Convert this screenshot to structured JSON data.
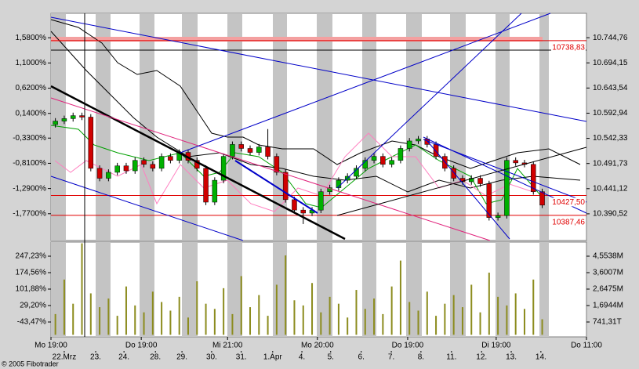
{
  "chart_data": [
    {
      "type": "candlestick",
      "xlim": [
        0,
        121
      ],
      "xticks": [
        {
          "value": 0,
          "label": "Mo 19:00"
        },
        {
          "value": 20.4,
          "label": "Do 19:00"
        },
        {
          "value": 39.9,
          "label": "Mi 21:00"
        },
        {
          "value": 60.2,
          "label": "Mo 20:00"
        },
        {
          "value": 80.6,
          "label": "Do 19:00"
        },
        {
          "value": 100.6,
          "label": "Di 19:00"
        },
        {
          "value": 121,
          "label": "Do 11:00"
        }
      ],
      "xticks2": [
        {
          "value": 3,
          "label": "22.Mrz"
        },
        {
          "value": 10.1,
          "label": "23."
        },
        {
          "value": 16.5,
          "label": "24."
        },
        {
          "value": 23.6,
          "label": "28."
        },
        {
          "value": 29.6,
          "label": "29."
        },
        {
          "value": 36.3,
          "label": "30."
        },
        {
          "value": 43,
          "label": "31."
        },
        {
          "value": 50.1,
          "label": "1.Apr"
        },
        {
          "value": 56.7,
          "label": "4."
        },
        {
          "value": 63.2,
          "label": "5."
        },
        {
          "value": 70.1,
          "label": "6."
        },
        {
          "value": 76.9,
          "label": "7."
        },
        {
          "value": 83.6,
          "label": "8."
        },
        {
          "value": 90.5,
          "label": "11."
        },
        {
          "value": 97.3,
          "label": "12."
        },
        {
          "value": 104,
          "label": "13."
        },
        {
          "value": 110.7,
          "label": "14."
        }
      ],
      "ylim": [
        10336.8,
        10793.8
      ],
      "yticks": [
        {
          "value": 10744.76,
          "label": "10.744,76"
        },
        {
          "value": 10694.15,
          "label": "10.694,15"
        },
        {
          "value": 10643.54,
          "label": "10.643,54"
        },
        {
          "value": 10592.94,
          "label": "10.592,94"
        },
        {
          "value": 10542.33,
          "label": "10.542,33"
        },
        {
          "value": 10491.73,
          "label": "10.491,73"
        },
        {
          "value": 10441.12,
          "label": "10.441,12"
        },
        {
          "value": 10390.52,
          "label": "10.390,52"
        }
      ],
      "y2lim": [
        -2.28,
        2.045
      ],
      "y2ticks": [
        {
          "value": 1.58,
          "label": "1,5800%"
        },
        {
          "value": 1.1,
          "label": "1,1000%"
        },
        {
          "value": 0.62,
          "label": "0,6200%"
        },
        {
          "value": 0.14,
          "label": "0,1400%"
        },
        {
          "value": -0.33,
          "label": "-0,3300%"
        },
        {
          "value": -0.81,
          "label": "-0,8100%"
        },
        {
          "value": -1.29,
          "label": "-1,2900%"
        },
        {
          "value": -1.77,
          "label": "-1,7700%"
        }
      ],
      "levels": [
        {
          "value": 10738.83,
          "label": "10738,83"
        },
        {
          "value": 10427.5,
          "label": "10427,50"
        },
        {
          "value": 10387.46,
          "label": "10387,46"
        }
      ],
      "level_color": "#e00000",
      "up_color": "#00b000",
      "down_color": "#d00000",
      "x": [
        1,
        3,
        5,
        7,
        9,
        11,
        13,
        15,
        17,
        19,
        21,
        23,
        25,
        27,
        29,
        31,
        33,
        35,
        37,
        39,
        41,
        43,
        45,
        47,
        49,
        51,
        53,
        55,
        57,
        59,
        61,
        63,
        65,
        67,
        69,
        71,
        73,
        75,
        77,
        79,
        81,
        83,
        85,
        87,
        89,
        91,
        93,
        95,
        97,
        99,
        101,
        103,
        105,
        107,
        109,
        111
      ],
      "open": [
        10570,
        10577,
        10582,
        10588,
        10585,
        10482,
        10462,
        10474,
        10487,
        10477,
        10498,
        10490,
        10482,
        10506,
        10498,
        10514,
        10498,
        10482,
        10414,
        10458,
        10506,
        10530,
        10522,
        10514,
        10525,
        10506,
        10474,
        10419,
        10398,
        10392,
        10398,
        10435,
        10443,
        10458,
        10466,
        10482,
        10498,
        10506,
        10490,
        10498,
        10522,
        10537,
        10541,
        10530,
        10506,
        10482,
        10462,
        10455,
        10462,
        10451,
        10383,
        10387,
        10498,
        10493,
        10490,
        10435
      ],
      "high": [
        10583,
        10588,
        10594,
        10594,
        10591,
        10488,
        10480,
        10493,
        10493,
        10504,
        10504,
        10496,
        10512,
        10512,
        10520,
        10520,
        10504,
        10488,
        10464,
        10512,
        10536,
        10536,
        10528,
        10531,
        10561,
        10512,
        10480,
        10425,
        10404,
        10404,
        10441,
        10449,
        10464,
        10472,
        10488,
        10504,
        10512,
        10512,
        10504,
        10528,
        10543,
        10547,
        10547,
        10536,
        10512,
        10488,
        10468,
        10468,
        10468,
        10457,
        10393,
        10504,
        10504,
        10499,
        10496,
        10441
      ],
      "low": [
        10564,
        10571,
        10576,
        10579,
        10476,
        10456,
        10456,
        10468,
        10471,
        10471,
        10484,
        10476,
        10476,
        10492,
        10492,
        10492,
        10476,
        10408,
        10408,
        10452,
        10500,
        10516,
        10508,
        10508,
        10500,
        10468,
        10413,
        10392,
        10370,
        10386,
        10392,
        10429,
        10437,
        10452,
        10460,
        10476,
        10492,
        10484,
        10484,
        10492,
        10516,
        10531,
        10524,
        10500,
        10476,
        10456,
        10449,
        10449,
        10445,
        10377,
        10377,
        10381,
        10487,
        10484,
        10429,
        10402
      ],
      "close": [
        10577,
        10582,
        10588,
        10585,
        10482,
        10462,
        10474,
        10487,
        10477,
        10498,
        10490,
        10482,
        10506,
        10498,
        10514,
        10498,
        10482,
        10414,
        10458,
        10506,
        10530,
        10522,
        10514,
        10525,
        10506,
        10474,
        10419,
        10398,
        10392,
        10398,
        10435,
        10443,
        10458,
        10466,
        10482,
        10498,
        10506,
        10490,
        10498,
        10522,
        10537,
        10541,
        10530,
        10506,
        10482,
        10462,
        10455,
        10462,
        10451,
        10383,
        10387,
        10498,
        10493,
        10490,
        10435,
        10408
      ]
    },
    {
      "type": "bar",
      "xlim": [
        0,
        121
      ],
      "ylim": [
        -121000,
        5371000
      ],
      "yticks": [
        {
          "value": 4553800,
          "label": "4,5538M"
        },
        {
          "value": 3600700,
          "label": "3,6007M"
        },
        {
          "value": 2647500,
          "label": "2,6475M"
        },
        {
          "value": 1694400,
          "label": "1,6944M"
        },
        {
          "value": 741310,
          "label": "741,31T"
        }
      ],
      "y2lim": [
        -109.2,
        309.5
      ],
      "y2ticks": [
        {
          "value": 247.23,
          "label": "247,23%"
        },
        {
          "value": 174.56,
          "label": "174,56%"
        },
        {
          "value": 101.88,
          "label": "101,88%"
        },
        {
          "value": 29.2,
          "label": "29,20%"
        },
        {
          "value": -43.47,
          "label": "-43,47%"
        }
      ],
      "color": "#8c8c1e",
      "x": [
        1,
        3,
        5,
        7,
        9,
        11,
        13,
        15,
        17,
        19,
        21,
        23,
        25,
        27,
        29,
        31,
        33,
        35,
        37,
        39,
        41,
        43,
        45,
        47,
        49,
        51,
        53,
        55,
        57,
        59,
        61,
        63,
        65,
        67,
        69,
        71,
        73,
        75,
        77,
        79,
        81,
        83,
        85,
        87,
        89,
        91,
        93,
        95,
        97,
        99,
        101,
        103,
        105,
        107,
        109,
        111
      ],
      "values": [
        1200000,
        3200000,
        1800000,
        5300000,
        2400000,
        1600000,
        2100000,
        1100000,
        2800000,
        1700000,
        1300000,
        2500000,
        1900000,
        1400000,
        2200000,
        1000000,
        3100000,
        1800000,
        1500000,
        2700000,
        1200000,
        3400000,
        1600000,
        2300000,
        1100000,
        2900000,
        4600000,
        2000000,
        1700000,
        3000000,
        1300000,
        2200000,
        1800000,
        1000000,
        2600000,
        1500000,
        2100000,
        1200000,
        2800000,
        4300000,
        1900000,
        1400000,
        2500000,
        1100000,
        1800000,
        2300000,
        1600000,
        2900000,
        1300000,
        3600000,
        2200000,
        1700000,
        2400000,
        1500000,
        3200000,
        900000
      ]
    }
  ],
  "footer": "© 2005 Fibotrader"
}
